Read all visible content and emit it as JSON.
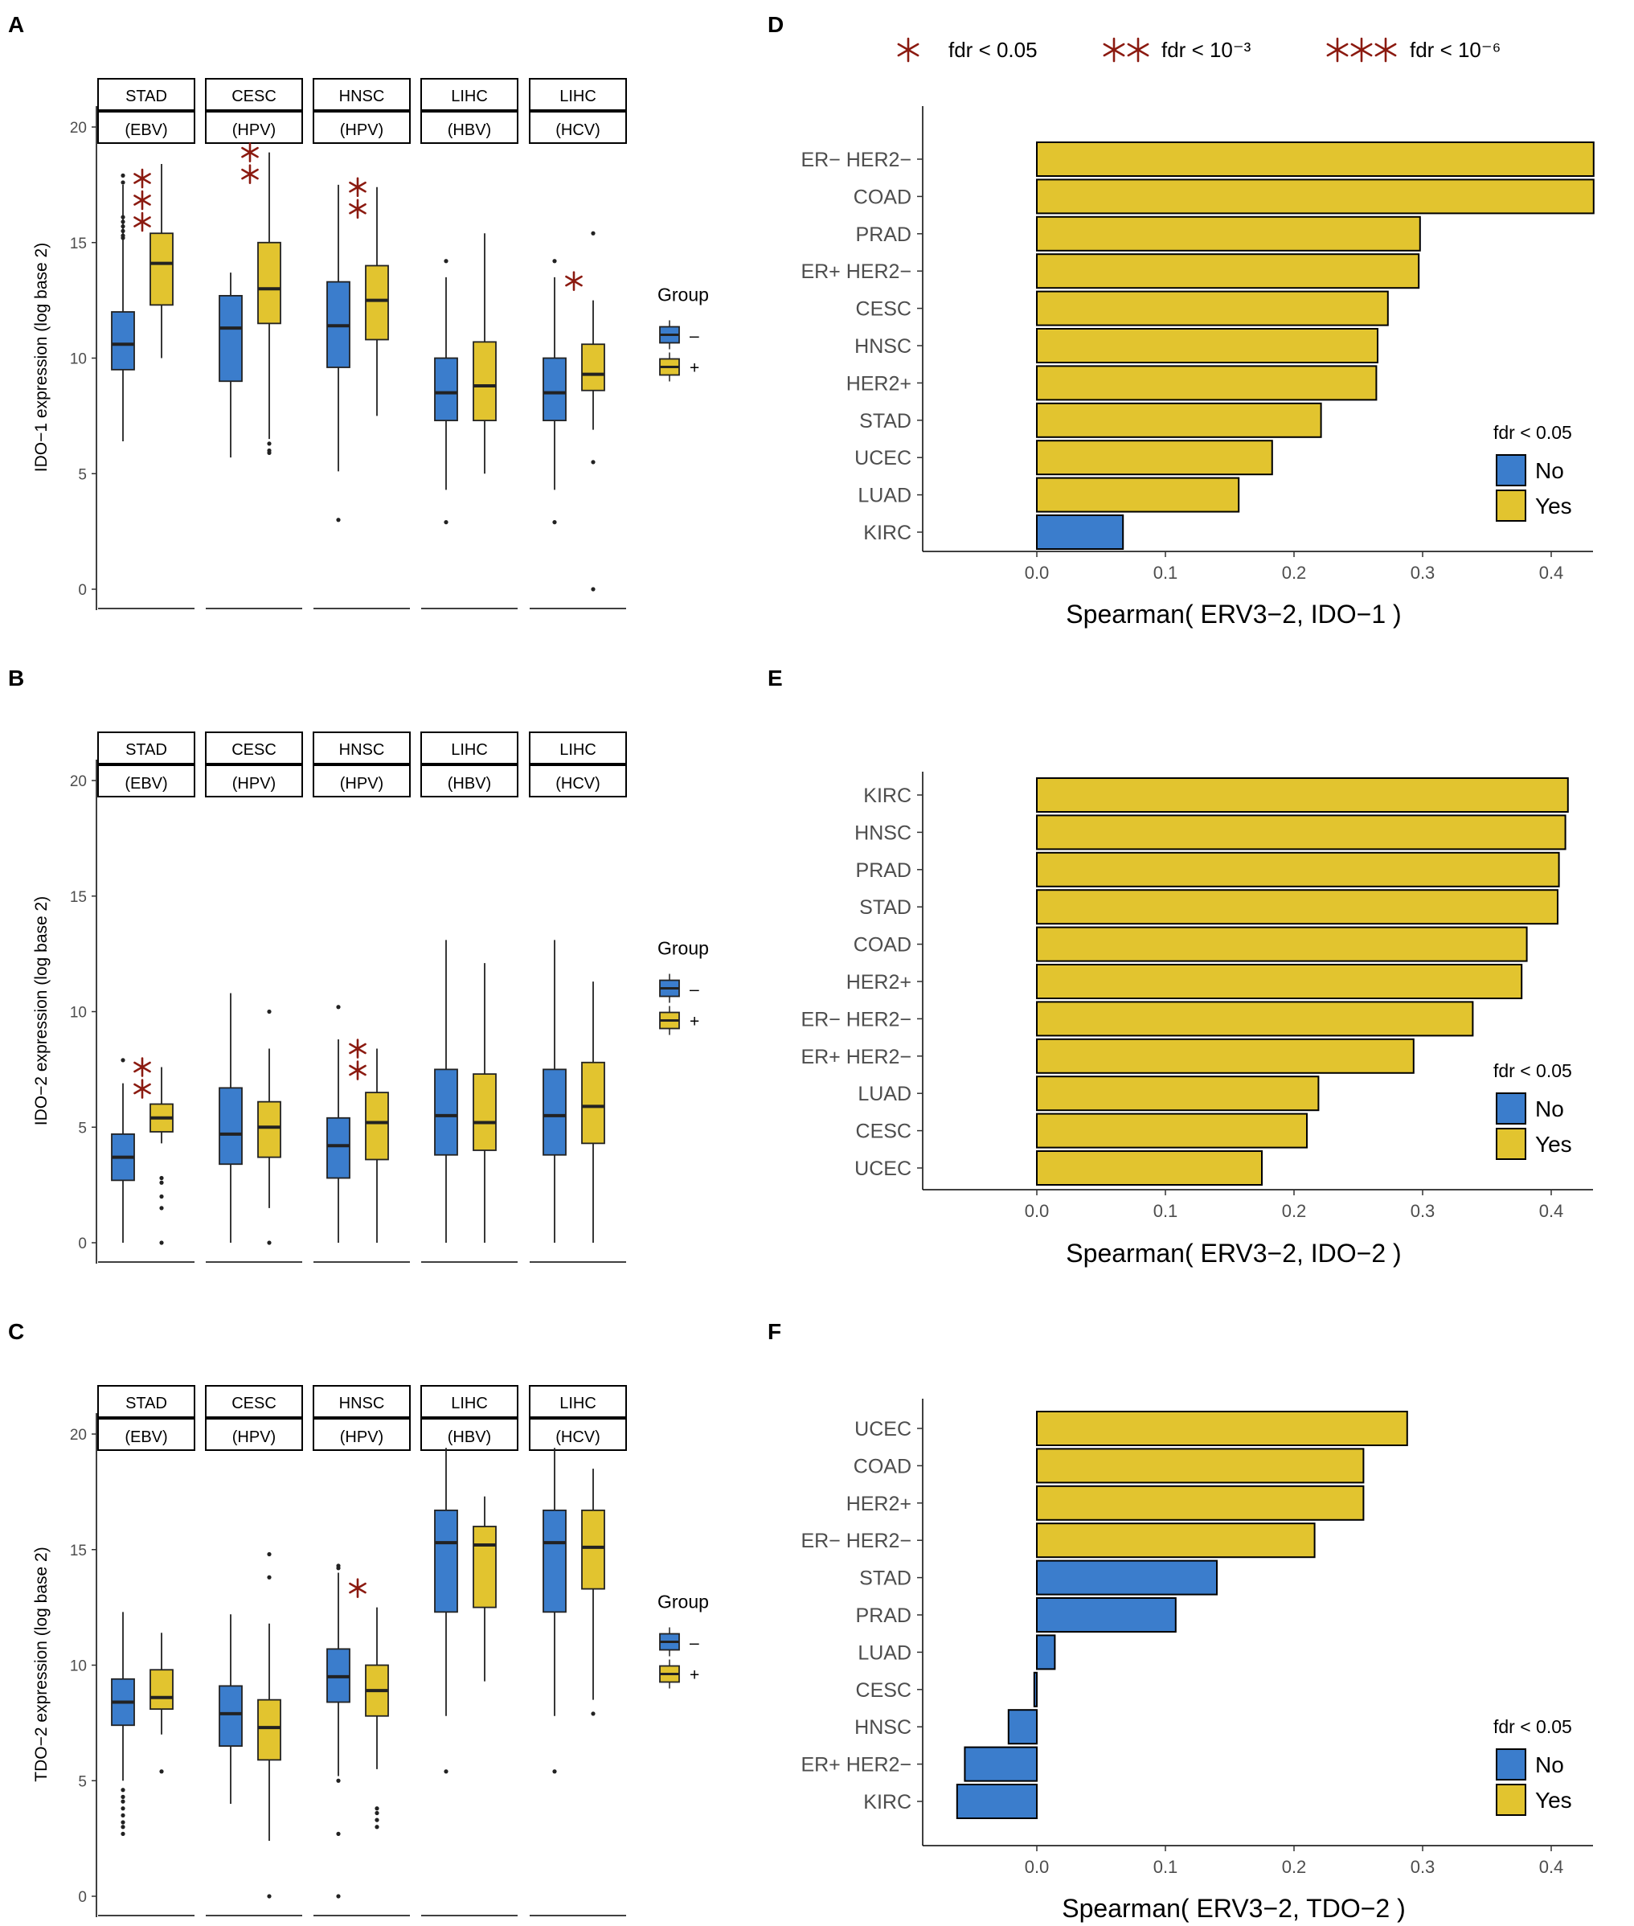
{
  "colors": {
    "neg": "#3b7dcc",
    "pos": "#e2c42f",
    "star": "#8b1a10",
    "axis": "#000000",
    "tick_text": "#4d4d4d"
  },
  "legend_stars": [
    {
      "stars": "*",
      "label": "fdr < 0.05"
    },
    {
      "stars": "**",
      "label": "fdr < 10⁻³"
    },
    {
      "stars": "***",
      "label": "fdr < 10⁻⁶"
    }
  ],
  "chart_data": [
    {
      "panel": "A",
      "type": "box",
      "ylabel": "IDO−1 expression (log base 2)",
      "ylim": [
        0,
        21
      ],
      "yticks": [
        0,
        5,
        10,
        15,
        20
      ],
      "legend": {
        "title": "Group",
        "items": [
          {
            "label": "–",
            "color": "neg"
          },
          {
            "label": "+",
            "color": "pos"
          }
        ]
      },
      "facets": [
        {
          "cancer": "STAD",
          "virus": "(EBV)",
          "stars": "***",
          "neg": {
            "lo": 6.4,
            "q1": 9.5,
            "med": 10.6,
            "q3": 12.0,
            "hi": 17.5,
            "outliers": [
              17.9,
              17.6,
              16.1,
              15.9,
              15.7,
              15.5,
              15.3,
              15.2
            ]
          },
          "pos": {
            "lo": 10.0,
            "q1": 12.3,
            "med": 14.1,
            "q3": 15.4,
            "hi": 18.4,
            "outliers": []
          }
        },
        {
          "cancer": "CESC",
          "virus": "(HPV)",
          "stars": "**",
          "neg": {
            "lo": 5.7,
            "q1": 9.0,
            "med": 11.3,
            "q3": 12.7,
            "hi": 13.7,
            "outliers": []
          },
          "pos": {
            "lo": 6.5,
            "q1": 11.5,
            "med": 13.0,
            "q3": 15.0,
            "hi": 18.9,
            "outliers": [
              6.3,
              6.0,
              5.9
            ]
          }
        },
        {
          "cancer": "HNSC",
          "virus": "(HPV)",
          "stars": "**",
          "neg": {
            "lo": 5.1,
            "q1": 9.6,
            "med": 11.4,
            "q3": 13.3,
            "hi": 17.5,
            "outliers": [
              3.0
            ]
          },
          "pos": {
            "lo": 7.5,
            "q1": 10.8,
            "med": 12.5,
            "q3": 14.0,
            "hi": 17.4,
            "outliers": []
          }
        },
        {
          "cancer": "LIHC",
          "virus": "(HBV)",
          "stars": "",
          "neg": {
            "lo": 4.3,
            "q1": 7.3,
            "med": 8.5,
            "q3": 10.0,
            "hi": 13.5,
            "outliers": [
              14.2,
              2.9
            ]
          },
          "pos": {
            "lo": 5.0,
            "q1": 7.3,
            "med": 8.8,
            "q3": 10.7,
            "hi": 15.4,
            "outliers": []
          }
        },
        {
          "cancer": "LIHC",
          "virus": "(HCV)",
          "stars": "*",
          "neg": {
            "lo": 4.3,
            "q1": 7.3,
            "med": 8.5,
            "q3": 10.0,
            "hi": 13.5,
            "outliers": [
              14.2,
              2.9
            ]
          },
          "pos": {
            "lo": 6.9,
            "q1": 8.6,
            "med": 9.3,
            "q3": 10.6,
            "hi": 12.5,
            "outliers": [
              15.4,
              5.5,
              0.0
            ]
          }
        }
      ]
    },
    {
      "panel": "B",
      "type": "box",
      "ylabel": "IDO−2 expression (log base 2)",
      "ylim": [
        0,
        21
      ],
      "yticks": [
        0,
        5,
        10,
        15,
        20
      ],
      "legend": {
        "title": "Group",
        "items": [
          {
            "label": "–",
            "color": "neg"
          },
          {
            "label": "+",
            "color": "pos"
          }
        ]
      },
      "facets": [
        {
          "cancer": "STAD",
          "virus": "(EBV)",
          "stars": "**",
          "neg": {
            "lo": 0.0,
            "q1": 2.7,
            "med": 3.7,
            "q3": 4.7,
            "hi": 6.9,
            "outliers": [
              7.9
            ]
          },
          "pos": {
            "lo": 4.3,
            "q1": 4.8,
            "med": 5.4,
            "q3": 6.0,
            "hi": 7.6,
            "outliers": [
              2.8,
              2.6,
              2.0,
              1.5,
              0.0
            ]
          }
        },
        {
          "cancer": "CESC",
          "virus": "(HPV)",
          "stars": "",
          "neg": {
            "lo": 0.0,
            "q1": 3.4,
            "med": 4.7,
            "q3": 6.7,
            "hi": 10.8,
            "outliers": []
          },
          "pos": {
            "lo": 1.5,
            "q1": 3.7,
            "med": 5.0,
            "q3": 6.1,
            "hi": 8.4,
            "outliers": [
              10.0,
              0.0
            ]
          }
        },
        {
          "cancer": "HNSC",
          "virus": "(HPV)",
          "stars": "**",
          "neg": {
            "lo": 0.0,
            "q1": 2.8,
            "med": 4.2,
            "q3": 5.4,
            "hi": 8.8,
            "outliers": [
              10.2
            ]
          },
          "pos": {
            "lo": 0.0,
            "q1": 3.6,
            "med": 5.2,
            "q3": 6.5,
            "hi": 8.4,
            "outliers": []
          }
        },
        {
          "cancer": "LIHC",
          "virus": "(HBV)",
          "stars": "",
          "neg": {
            "lo": 0.0,
            "q1": 3.8,
            "med": 5.5,
            "q3": 7.5,
            "hi": 13.1,
            "outliers": []
          },
          "pos": {
            "lo": 0.0,
            "q1": 4.0,
            "med": 5.2,
            "q3": 7.3,
            "hi": 12.1,
            "outliers": []
          }
        },
        {
          "cancer": "LIHC",
          "virus": "(HCV)",
          "stars": "",
          "neg": {
            "lo": 0.0,
            "q1": 3.8,
            "med": 5.5,
            "q3": 7.5,
            "hi": 13.1,
            "outliers": []
          },
          "pos": {
            "lo": 0.0,
            "q1": 4.3,
            "med": 5.9,
            "q3": 7.8,
            "hi": 11.3,
            "outliers": []
          }
        }
      ]
    },
    {
      "panel": "C",
      "type": "box",
      "ylabel": "TDO−2 expression (log base 2)",
      "ylim": [
        0,
        21
      ],
      "yticks": [
        0,
        5,
        10,
        15,
        20
      ],
      "legend": {
        "title": "Group",
        "items": [
          {
            "label": "–",
            "color": "neg"
          },
          {
            "label": "+",
            "color": "pos"
          }
        ]
      },
      "facets": [
        {
          "cancer": "STAD",
          "virus": "(EBV)",
          "stars": "",
          "neg": {
            "lo": 5.0,
            "q1": 7.4,
            "med": 8.4,
            "q3": 9.4,
            "hi": 12.3,
            "outliers": [
              4.6,
              4.3,
              4.1,
              3.8,
              3.5,
              3.2,
              3.0,
              2.7
            ]
          },
          "pos": {
            "lo": 7.0,
            "q1": 8.1,
            "med": 8.6,
            "q3": 9.8,
            "hi": 11.4,
            "outliers": [
              5.4
            ]
          }
        },
        {
          "cancer": "CESC",
          "virus": "(HPV)",
          "stars": "",
          "neg": {
            "lo": 4.0,
            "q1": 6.5,
            "med": 7.9,
            "q3": 9.1,
            "hi": 12.2,
            "outliers": []
          },
          "pos": {
            "lo": 2.4,
            "q1": 5.9,
            "med": 7.3,
            "q3": 8.5,
            "hi": 11.8,
            "outliers": [
              14.8,
              13.8,
              0.0
            ]
          }
        },
        {
          "cancer": "HNSC",
          "virus": "(HPV)",
          "stars": "*",
          "neg": {
            "lo": 5.2,
            "q1": 8.4,
            "med": 9.5,
            "q3": 10.7,
            "hi": 14.0,
            "outliers": [
              14.3,
              14.2,
              5.0,
              2.7,
              0.0
            ]
          },
          "pos": {
            "lo": 5.5,
            "q1": 7.8,
            "med": 8.9,
            "q3": 10.0,
            "hi": 12.5,
            "outliers": [
              3.8,
              3.6,
              3.3,
              3.0
            ]
          }
        },
        {
          "cancer": "LIHC",
          "virus": "(HBV)",
          "stars": "",
          "neg": {
            "lo": 7.8,
            "q1": 12.3,
            "med": 15.3,
            "q3": 16.7,
            "hi": 19.4,
            "outliers": [
              5.4
            ]
          },
          "pos": {
            "lo": 9.3,
            "q1": 12.5,
            "med": 15.2,
            "q3": 16.0,
            "hi": 17.3,
            "outliers": []
          }
        },
        {
          "cancer": "LIHC",
          "virus": "(HCV)",
          "stars": "",
          "neg": {
            "lo": 7.8,
            "q1": 12.3,
            "med": 15.3,
            "q3": 16.7,
            "hi": 19.4,
            "outliers": [
              5.4
            ]
          },
          "pos": {
            "lo": 8.5,
            "q1": 13.3,
            "med": 15.1,
            "q3": 16.7,
            "hi": 18.5,
            "outliers": [
              7.9
            ]
          }
        }
      ]
    },
    {
      "panel": "D",
      "type": "bar",
      "orientation": "horizontal",
      "xlabel": "Spearman( ERV3−2, IDO−1 )",
      "xlim": [
        -0.09,
        0.43
      ],
      "xticks": [
        0.0,
        0.1,
        0.2,
        0.3,
        0.4
      ],
      "legend": {
        "title": "fdr < 0.05",
        "items": [
          {
            "label": "No",
            "color": "neg"
          },
          {
            "label": "Yes",
            "color": "pos"
          }
        ]
      },
      "categories": [
        "ER− HER2−",
        "COAD",
        "PRAD",
        "ER+ HER2−",
        "CESC",
        "HNSC",
        "HER2+",
        "STAD",
        "UCEC",
        "LUAD",
        "KIRC"
      ],
      "values": [
        0.433,
        0.433,
        0.298,
        0.297,
        0.273,
        0.265,
        0.264,
        0.221,
        0.183,
        0.157,
        0.067
      ],
      "significant": [
        true,
        true,
        true,
        true,
        true,
        true,
        true,
        true,
        true,
        true,
        false
      ]
    },
    {
      "panel": "E",
      "type": "bar",
      "orientation": "horizontal",
      "xlabel": "Spearman( ERV3−2, IDO−2 )",
      "xlim": [
        -0.09,
        0.43
      ],
      "xticks": [
        0.0,
        0.1,
        0.2,
        0.3,
        0.4
      ],
      "legend": {
        "title": "fdr < 0.05",
        "items": [
          {
            "label": "No",
            "color": "neg"
          },
          {
            "label": "Yes",
            "color": "pos"
          }
        ]
      },
      "categories": [
        "KIRC",
        "HNSC",
        "PRAD",
        "STAD",
        "COAD",
        "HER2+",
        "ER− HER2−",
        "ER+ HER2−",
        "LUAD",
        "CESC",
        "UCEC"
      ],
      "values": [
        0.413,
        0.411,
        0.406,
        0.405,
        0.381,
        0.377,
        0.339,
        0.293,
        0.219,
        0.21,
        0.175
      ],
      "significant": [
        true,
        true,
        true,
        true,
        true,
        true,
        true,
        true,
        true,
        true,
        true
      ]
    },
    {
      "panel": "F",
      "type": "bar",
      "orientation": "horizontal",
      "xlabel": "Spearman( ERV3−2, TDO−2 )",
      "xlim": [
        -0.09,
        0.43
      ],
      "xticks": [
        0.0,
        0.1,
        0.2,
        0.3,
        0.4
      ],
      "legend": {
        "title": "fdr < 0.05",
        "items": [
          {
            "label": "No",
            "color": "neg"
          },
          {
            "label": "Yes",
            "color": "pos"
          }
        ]
      },
      "categories": [
        "UCEC",
        "COAD",
        "HER2+",
        "ER− HER2−",
        "STAD",
        "PRAD",
        "LUAD",
        "CESC",
        "HNSC",
        "ER+ HER2−",
        "KIRC"
      ],
      "values": [
        0.288,
        0.254,
        0.254,
        0.216,
        0.14,
        0.108,
        0.014,
        -0.002,
        -0.022,
        -0.056,
        -0.062
      ],
      "significant": [
        true,
        true,
        true,
        true,
        false,
        false,
        false,
        false,
        false,
        false,
        false
      ]
    }
  ]
}
